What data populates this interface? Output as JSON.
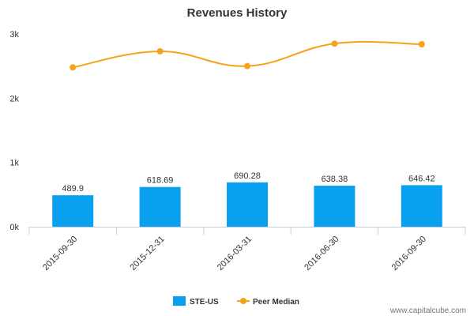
{
  "chart_data": {
    "type": "bar",
    "title": "Revenues History",
    "categories": [
      "2015-09-30",
      "2015-12-31",
      "2016-03-31",
      "2016-06-30",
      "2016-09-30"
    ],
    "series": [
      {
        "name": "STE-US",
        "type": "bar",
        "color": "#0aa0f0",
        "values": [
          489.9,
          618.69,
          690.28,
          638.38,
          646.42
        ],
        "labels": [
          "489.9",
          "618.69",
          "690.28",
          "638.38",
          "646.42"
        ]
      },
      {
        "name": "Peer Median",
        "type": "line",
        "color": "#f5a31a",
        "values": [
          2480,
          2730,
          2500,
          2850,
          2840
        ]
      }
    ],
    "yticks": [
      {
        "value": 0,
        "label": "0k"
      },
      {
        "value": 1000,
        "label": "1k"
      },
      {
        "value": 2000,
        "label": "2k"
      },
      {
        "value": 3000,
        "label": "3k"
      }
    ],
    "ylim": [
      0,
      3000
    ],
    "grid": false,
    "legend_position": "bottom"
  },
  "watermark": "www.capitalcube.com"
}
